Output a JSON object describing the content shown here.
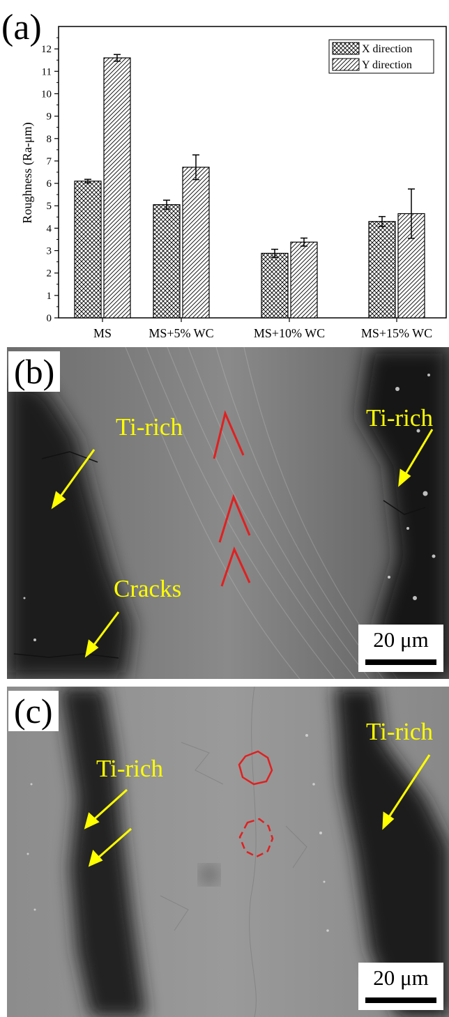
{
  "chart_data": {
    "type": "bar",
    "panel_label": "(a)",
    "categories": [
      "MS",
      "MS+5% WC",
      "MS+10% WC",
      "MS+15% WC"
    ],
    "series": [
      {
        "name": "X direction",
        "values": [
          6.1,
          5.05,
          2.88,
          4.3
        ],
        "errors": [
          0.08,
          0.2,
          0.18,
          0.22
        ],
        "pattern": "crosshatch"
      },
      {
        "name": "Y direction",
        "values": [
          11.6,
          6.72,
          3.38,
          4.65
        ],
        "errors": [
          0.15,
          0.55,
          0.18,
          1.1
        ],
        "pattern": "diagonal"
      }
    ],
    "ylabel": "Roughness (Ra-μm)",
    "xlabel": "",
    "ylim": [
      0,
      13
    ],
    "yticks": [
      0,
      1,
      2,
      3,
      4,
      5,
      6,
      7,
      8,
      9,
      10,
      11,
      12
    ],
    "legend_position": "top-right",
    "grid": false
  },
  "panels": {
    "b": {
      "label": "(b)",
      "annotations": [
        "Ti-rich",
        "Ti-rich",
        "Cracks"
      ],
      "scale_bar": "20 μm"
    },
    "c": {
      "label": "(c)",
      "annotations": [
        "Ti-rich",
        "Ti-rich"
      ],
      "scale_bar": "20 μm"
    }
  },
  "colors": {
    "annotation_text": "#ffff00",
    "annotation_arrow": "#ffff00",
    "marker": "#e02020"
  }
}
